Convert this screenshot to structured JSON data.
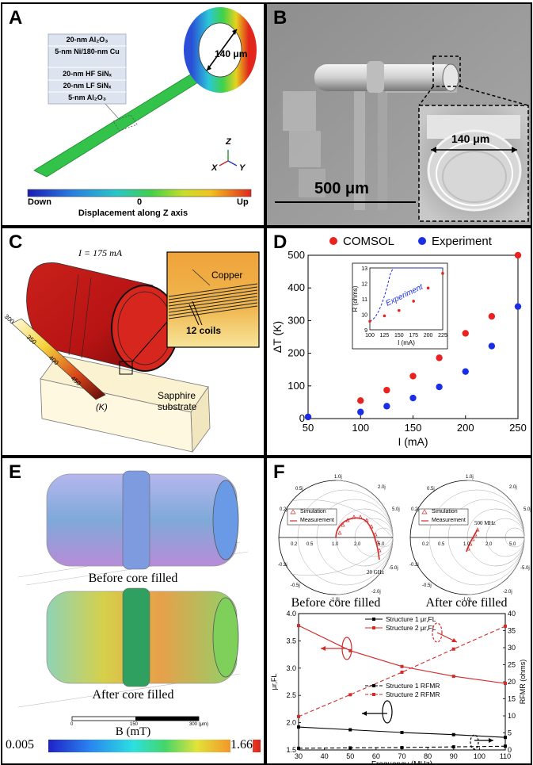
{
  "panels": {
    "A": {
      "label": "A",
      "layers": [
        "20-nm Al₂O₃",
        "5-nm Ni/180-nm Cu",
        "20-nm HF SiNₓ",
        "20-nm LF SiNₓ",
        "5-nm Al₂O₃"
      ],
      "diameter_label": "140 μm",
      "axis_z": "Z",
      "axis_x": "X",
      "axis_y": "Y",
      "colorbar_down": "Down",
      "colorbar_zero": "0",
      "colorbar_up": "Up",
      "colorbar_title": "Displacement along Z axis"
    },
    "B": {
      "label": "B",
      "scale_label": "500 μm",
      "inset_label": "140 μm"
    },
    "C": {
      "label": "C",
      "current_label": "I = 175 mA",
      "copper_label": "Copper",
      "coils_label": "12 coils",
      "substrate_label": "Sapphire substrate",
      "colorbar_ticks": [
        "300",
        "350",
        "400",
        "450"
      ],
      "colorbar_unit": "(K)"
    },
    "D": {
      "label": "D"
    },
    "E": {
      "label": "E",
      "before_label": "Before core filled",
      "after_label": "After core filled",
      "scale_ticks": [
        "0",
        "150",
        "300 (μm)"
      ],
      "colorbar_title": "B (mT)",
      "colorbar_min": "0.005",
      "colorbar_max": "1.66"
    },
    "F": {
      "label": "F",
      "smith_left_caption": "Before core filled",
      "smith_right_caption": "After core filled",
      "smith_legend": [
        "Simulation",
        "Measurement"
      ],
      "smith_left_freq": "20 GHz",
      "smith_right_freq": "500 MHz",
      "smith_ticks": [
        "1.0j",
        "2.0j",
        "5.0j",
        "0.5j",
        "0.2j",
        "-0.2j",
        "-0.5j",
        "-1.0j",
        "-2.0j",
        "-5.0j",
        "0.2",
        "0.5",
        "1.0",
        "2.0",
        "5.0"
      ]
    }
  },
  "chart_data": [
    {
      "type": "scatter",
      "panel": "D",
      "xlabel": "I (mA)",
      "ylabel": "ΔT (K)",
      "xlim": [
        50,
        250
      ],
      "ylim": [
        0,
        500
      ],
      "xticks": [
        "50",
        "100",
        "150",
        "200",
        "250"
      ],
      "yticks": [
        "0",
        "100",
        "200",
        "300",
        "400",
        "500"
      ],
      "legend_position": "top",
      "series": [
        {
          "name": "COMSOL",
          "color": "#e8231f",
          "x": [
            50,
            100,
            125,
            150,
            175,
            200,
            225,
            250
          ],
          "y": [
            5,
            55,
            87,
            130,
            186,
            261,
            313,
            500
          ]
        },
        {
          "name": "Experiment",
          "color": "#1a2ee6",
          "x": [
            50,
            100,
            125,
            150,
            175,
            200,
            225,
            250
          ],
          "y": [
            5,
            20,
            38,
            63,
            97,
            144,
            222,
            343
          ]
        }
      ],
      "inset": {
        "type": "scatter",
        "xlabel": "I (mA)",
        "ylabel": "R (ohms)",
        "xlim": [
          100,
          225
        ],
        "ylim": [
          9,
          13
        ],
        "xticks": [
          "100",
          "125",
          "150",
          "175",
          "200",
          "225"
        ],
        "yticks": [
          "9",
          "10",
          "11",
          "12",
          "13"
        ],
        "annotation": "Experiment",
        "x": [
          100,
          125,
          150,
          175,
          200,
          225
        ],
        "y": [
          9.55,
          9.9,
          10.25,
          10.85,
          11.7,
          12.65
        ]
      }
    },
    {
      "type": "line",
      "panel": "F",
      "xlabel": "Frequency (MHz)",
      "ylabel": "μr,FL",
      "y2label": "RFMR (ohms)",
      "xlim": [
        30,
        110
      ],
      "ylim": [
        1.5,
        4.0
      ],
      "y2lim": [
        0,
        40
      ],
      "xticks": [
        "30",
        "40",
        "50",
        "60",
        "70",
        "80",
        "90",
        "100",
        "110"
      ],
      "yticks": [
        "1.5",
        "2.0",
        "2.5",
        "3.0",
        "3.5",
        "4.0"
      ],
      "y2ticks": [
        "0",
        "5",
        "10",
        "15",
        "20",
        "25",
        "30",
        "35",
        "40"
      ],
      "series": [
        {
          "name": "Structure 1 μr,FL",
          "axis": "left",
          "style": "solid",
          "color": "#000000",
          "x": [
            30,
            50,
            70,
            90,
            110
          ],
          "y": [
            1.92,
            1.87,
            1.82,
            1.78,
            1.73
          ]
        },
        {
          "name": "Structure 2 μr,FL",
          "axis": "left",
          "style": "solid",
          "color": "#d42a2a",
          "x": [
            30,
            50,
            70,
            90,
            110
          ],
          "y": [
            3.78,
            3.32,
            3.03,
            2.85,
            2.72
          ]
        },
        {
          "name": "Structure 1 RFMR",
          "axis": "right",
          "style": "dashed",
          "color": "#000000",
          "x": [
            30,
            50,
            70,
            90,
            110
          ],
          "y": [
            0.5,
            0.6,
            0.7,
            0.9,
            1.1
          ]
        },
        {
          "name": "Structure 2 RFMR",
          "axis": "right",
          "style": "dashed",
          "color": "#d42a2a",
          "x": [
            30,
            50,
            70,
            90,
            110
          ],
          "y": [
            9.8,
            16.2,
            22.8,
            29.6,
            36.3
          ]
        }
      ]
    }
  ]
}
